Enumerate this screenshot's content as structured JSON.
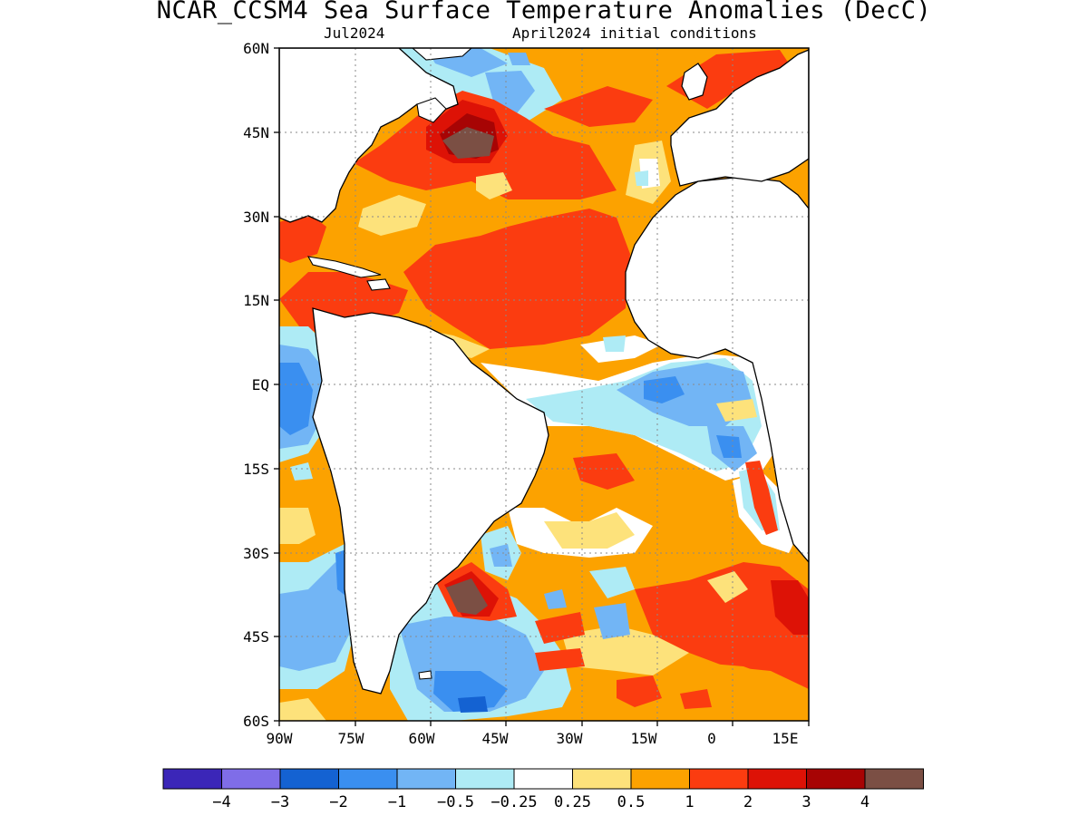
{
  "title": "NCAR_CCSM4 Sea Surface Temperature Anomalies (DecC)",
  "subtitle_left": "Jul2024",
  "subtitle_right": "April2024 initial conditions",
  "axes": {
    "lat_ticks": [
      "60N",
      "45N",
      "30N",
      "15N",
      "EQ",
      "15S",
      "30S",
      "45S",
      "60S"
    ],
    "lon_ticks": [
      "90W",
      "75W",
      "60W",
      "45W",
      "30W",
      "15W",
      "0",
      "15E"
    ],
    "lat_range": [
      -60,
      60
    ],
    "lon_range": [
      -90,
      15
    ],
    "grid": "dotted"
  },
  "colorbar": {
    "colors": [
      "#3b26b8",
      "#7f6de8",
      "#1462d2",
      "#3a8ff0",
      "#72b5f5",
      "#aeebf5",
      "#ffffff",
      "#fde27b",
      "#fca200",
      "#fb3c10",
      "#dd1206",
      "#a70404",
      "#7b4f44"
    ],
    "labels": [
      "-4",
      "-3",
      "-2",
      "-1",
      "-0.5",
      "-0.25",
      "0.25",
      "0.5",
      "1",
      "2",
      "3",
      "4"
    ]
  }
}
